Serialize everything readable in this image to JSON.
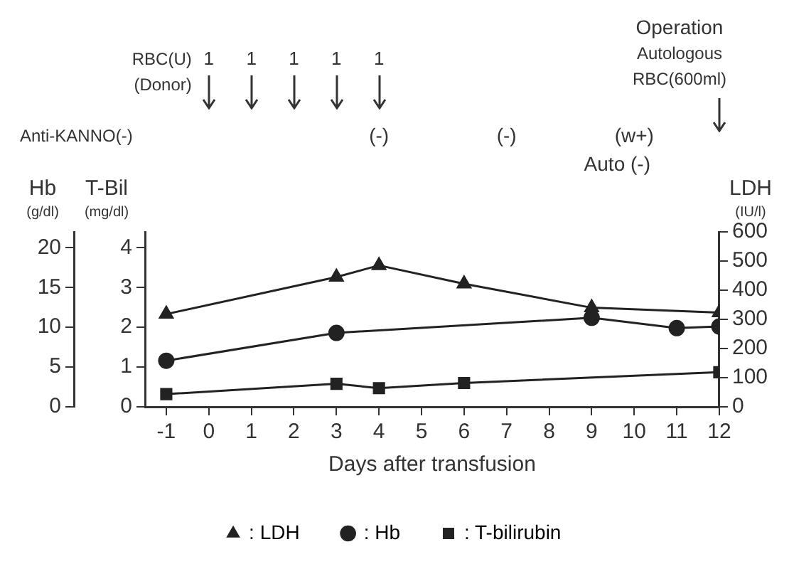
{
  "chart_data": {
    "type": "line",
    "xlabel": "Days after transfusion",
    "ylabel": "Hb\n(g/dl)",
    "y3label": "T-Bil\n(mg/dl)",
    "y2label": "LDH\n(IU/l)",
    "xlim": [
      -1.5,
      12
    ],
    "xticks": [
      -1,
      0,
      1,
      2,
      3,
      4,
      5,
      6,
      7,
      8,
      9,
      10,
      11,
      12
    ],
    "ylim": [
      0,
      22
    ],
    "yticks": [
      0,
      5,
      10,
      15,
      20
    ],
    "y3lim": [
      0,
      4.4
    ],
    "y3ticks": [
      0,
      1,
      2,
      3,
      4
    ],
    "y2lim": [
      0,
      600
    ],
    "y2ticks": [
      0,
      100,
      200,
      300,
      400,
      500,
      600
    ],
    "grid": false,
    "legend": "bottom",
    "line_style": "solid",
    "series": [
      {
        "name": ": LDH",
        "color": "#222222",
        "marker": "triangle",
        "axis": "y2",
        "x": [
          -1,
          3,
          4,
          6,
          9,
          12
        ],
        "values": [
          318,
          445,
          485,
          422,
          340,
          323
        ]
      },
      {
        "name": ": Hb",
        "color": "#222222",
        "marker": "circle",
        "axis": "y",
        "x": [
          -1,
          3,
          9,
          11,
          12
        ],
        "values": [
          5.8,
          9.3,
          11.2,
          9.9,
          10.1
        ]
      },
      {
        "name": ": T-bilirubin",
        "color": "#222222",
        "marker": "square",
        "axis": "y3",
        "x": [
          -1,
          3,
          4,
          6,
          12
        ],
        "values": [
          0.32,
          0.58,
          0.47,
          0.6,
          0.87
        ]
      }
    ],
    "annotations": [
      "RBC(U)",
      "(Donor)",
      "1",
      "1",
      "1",
      "1",
      "1",
      "Operation",
      "Autologous",
      "RBC(600ml)",
      "Anti-KANNO(-)",
      "(-)",
      "(-)",
      "(w+)",
      "Auto (-)"
    ]
  }
}
